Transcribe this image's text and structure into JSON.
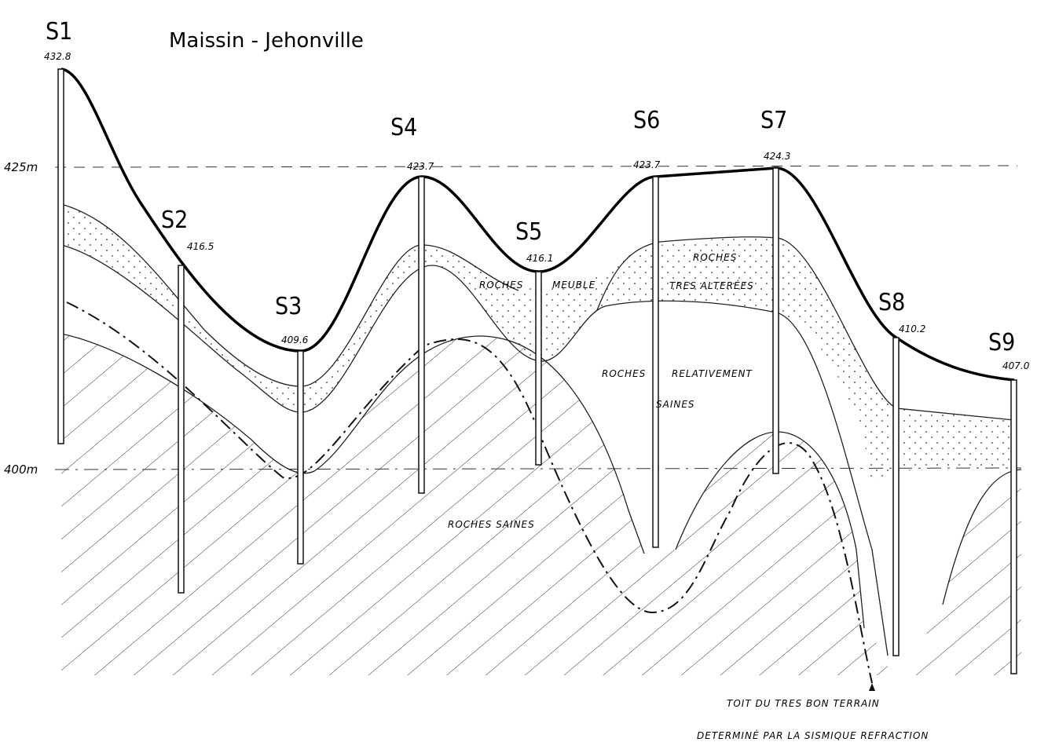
{
  "title": "Maissin - Jehonville",
  "boreholes": [
    {
      "label": "S1",
      "elevation": "432.8"
    },
    {
      "label": "S2",
      "elevation": "416.5"
    },
    {
      "label": "S3",
      "elevation": "409.6"
    },
    {
      "label": "S4",
      "elevation": "423.7"
    },
    {
      "label": "S5",
      "elevation": "416.1"
    },
    {
      "label": "S6",
      "elevation": "423.7"
    },
    {
      "label": "S7",
      "elevation": "424.3"
    },
    {
      "label": "S8",
      "elevation": "410.2"
    },
    {
      "label": "S9",
      "elevation": "407.0"
    }
  ],
  "axis": {
    "labels": [
      "425m",
      "400m"
    ]
  },
  "zones": [
    "ROCHES",
    "MEUBLE",
    "ROCHES",
    "TRES ALTERÉES",
    "ROCHES",
    "RELATIVEMENT",
    "SAINES",
    "ROCHES SAINES"
  ],
  "note": [
    "TOIT DU TRES BON TERRAIN",
    "DETERMINÉ PAR LA SISMIQUE REFRACTION"
  ]
}
